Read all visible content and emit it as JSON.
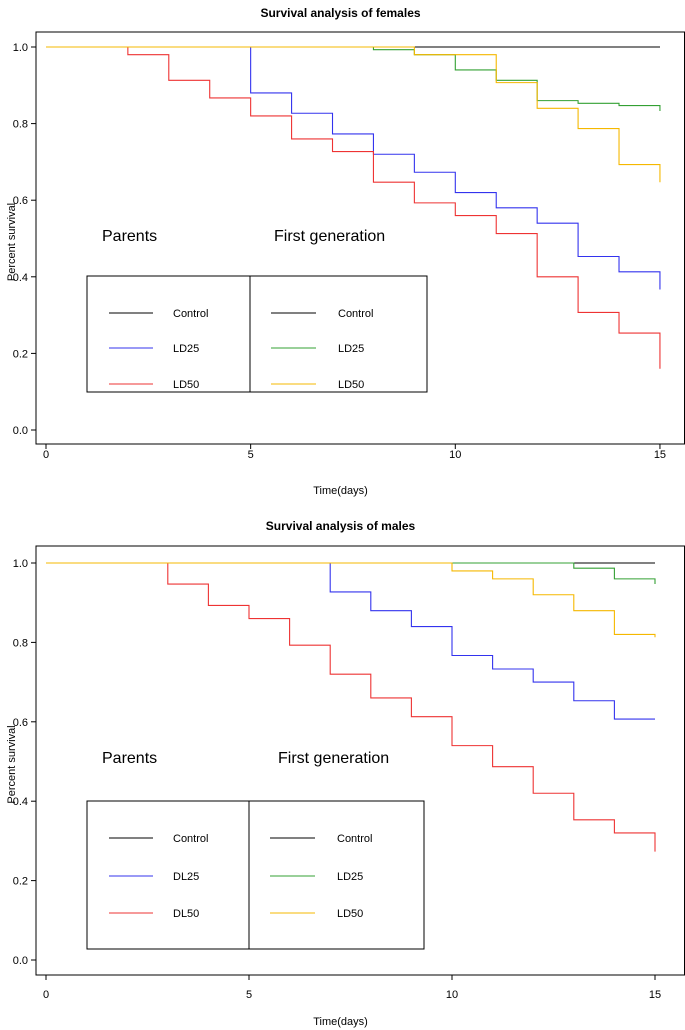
{
  "chart_data": [
    {
      "type": "line",
      "step": true,
      "title": "Survival analysis of females",
      "xlabel": "Time(days)",
      "ylabel": "Percent survival",
      "xlim": [
        0,
        15.5
      ],
      "ylim": [
        -0.04,
        1.04
      ],
      "xticks": [
        0,
        5,
        10,
        15
      ],
      "yticks": [
        0.0,
        0.2,
        0.4,
        0.6,
        0.8,
        1.0
      ],
      "ytick_labels": [
        "0.0",
        "0.2",
        "0.4",
        "0.6",
        "0.8",
        "1.0"
      ],
      "group_labels": {
        "parents": "Parents",
        "first": "First generation"
      },
      "series": [
        {
          "name": "Control",
          "group": "Parents",
          "color": "#000000",
          "x": [
            0,
            15
          ],
          "y": [
            1.0,
            1.0
          ]
        },
        {
          "name": "LD25",
          "group": "Parents",
          "color": "#3333ee",
          "x": [
            0,
            5,
            6,
            7,
            8,
            9,
            10,
            11,
            12,
            13,
            14,
            15
          ],
          "y": [
            1.0,
            0.88,
            0.827,
            0.773,
            0.72,
            0.673,
            0.62,
            0.58,
            0.54,
            0.453,
            0.413,
            0.367
          ]
        },
        {
          "name": "LD50",
          "group": "Parents",
          "color": "#ee3333",
          "x": [
            0,
            2,
            3,
            4,
            5,
            6,
            7,
            8,
            9,
            10,
            11,
            12,
            13,
            14,
            15
          ],
          "y": [
            1.0,
            0.98,
            0.913,
            0.867,
            0.82,
            0.76,
            0.727,
            0.647,
            0.593,
            0.56,
            0.513,
            0.4,
            0.307,
            0.253,
            0.16
          ]
        },
        {
          "name": "Control",
          "group": "First generation",
          "color": "#000000",
          "x": [
            0,
            15
          ],
          "y": [
            1.0,
            1.0
          ]
        },
        {
          "name": "LD25",
          "group": "First generation",
          "color": "#33a033",
          "x": [
            0,
            8,
            9,
            10,
            11,
            12,
            13,
            14,
            15
          ],
          "y": [
            1.0,
            0.993,
            0.98,
            0.94,
            0.913,
            0.86,
            0.853,
            0.847,
            0.833
          ]
        },
        {
          "name": "LD50",
          "group": "First generation",
          "color": "#f5b800",
          "x": [
            0,
            9,
            11,
            12,
            13,
            14,
            15
          ],
          "y": [
            1.0,
            0.98,
            0.907,
            0.84,
            0.787,
            0.693,
            0.647
          ]
        }
      ]
    },
    {
      "type": "line",
      "step": true,
      "title": "Survival analysis of males",
      "xlabel": "Time(days)",
      "ylabel": "Percent survival",
      "xlim": [
        0,
        15.5
      ],
      "ylim": [
        -0.04,
        1.04
      ],
      "xticks": [
        0,
        5,
        10,
        15
      ],
      "yticks": [
        0.0,
        0.2,
        0.4,
        0.6,
        0.8,
        1.0
      ],
      "ytick_labels": [
        "0.0",
        "0.2",
        "0.4",
        "0.6",
        "0.8",
        "1.0"
      ],
      "group_labels": {
        "parents": "Parents",
        "first": "First generation"
      },
      "series": [
        {
          "name": "Control",
          "group": "Parents",
          "color": "#000000",
          "x": [
            0,
            15
          ],
          "y": [
            1.0,
            1.0
          ]
        },
        {
          "name": "DL25",
          "group": "Parents",
          "color": "#3333ee",
          "x": [
            0,
            7,
            8,
            9,
            10,
            11,
            12,
            13,
            14,
            15
          ],
          "y": [
            1.0,
            0.927,
            0.88,
            0.84,
            0.767,
            0.733,
            0.7,
            0.653,
            0.607,
            0.607
          ]
        },
        {
          "name": "DL50",
          "group": "Parents",
          "color": "#ee3333",
          "x": [
            0,
            3,
            4,
            5,
            6,
            7,
            8,
            9,
            10,
            11,
            12,
            13,
            14,
            15
          ],
          "y": [
            1.0,
            0.947,
            0.893,
            0.86,
            0.793,
            0.72,
            0.66,
            0.613,
            0.54,
            0.487,
            0.42,
            0.353,
            0.32,
            0.273
          ]
        },
        {
          "name": "Control",
          "group": "First generation",
          "color": "#000000",
          "x": [
            0,
            15
          ],
          "y": [
            1.0,
            1.0
          ]
        },
        {
          "name": "LD25",
          "group": "First generation",
          "color": "#33a033",
          "x": [
            0,
            13,
            14,
            15
          ],
          "y": [
            1.0,
            0.987,
            0.96,
            0.947
          ]
        },
        {
          "name": "LD50",
          "group": "First generation",
          "color": "#f5b800",
          "x": [
            0,
            10,
            11,
            12,
            13,
            14,
            15
          ],
          "y": [
            1.0,
            0.98,
            0.96,
            0.92,
            0.88,
            0.82,
            0.813
          ]
        }
      ]
    }
  ]
}
